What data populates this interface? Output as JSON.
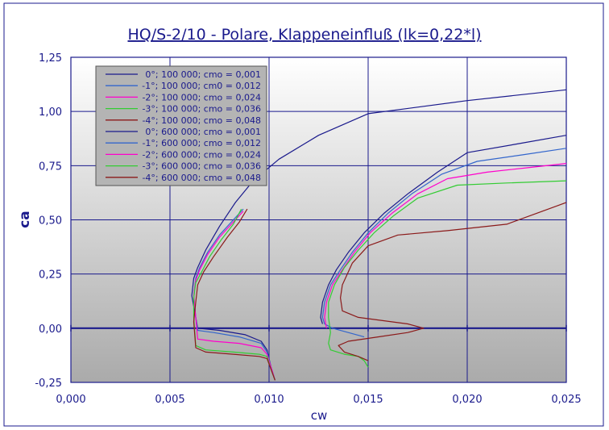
{
  "chart_data": {
    "type": "line",
    "title": "HQ/S-2/10 - Polare, Klappeneinfluß (lk=0,22*l)",
    "xlabel": "cw",
    "ylabel": "ca",
    "xlim": [
      0.0,
      0.025
    ],
    "ylim": [
      -0.25,
      1.25
    ],
    "x_ticks": [
      "0,000",
      "0,005",
      "0,010",
      "0,015",
      "0,020",
      "0,025"
    ],
    "x_tick_values": [
      0.0,
      0.005,
      0.01,
      0.015,
      0.02,
      0.025
    ],
    "y_ticks": [
      "1,25",
      "1,00",
      "0,75",
      "0,50",
      "0,25",
      "0,00",
      "-0,25"
    ],
    "y_tick_values": [
      1.25,
      1.0,
      0.75,
      0.5,
      0.25,
      0.0,
      -0.25
    ],
    "grid": true,
    "legend_position": "top-left",
    "colors": {
      "page_background": "#ffffff",
      "plot_background_top": "#ffffff",
      "plot_background_bottom": "#aaaaaa",
      "grid": "#1a1a8c",
      "legend_background": "#b4b4b4",
      "text": "#1a1a8c"
    },
    "series": [
      {
        "name": "0°; 100 000; cmo = 0,001",
        "color": "#1a1a8c",
        "x": [
          0.0103,
          0.0101,
          0.0099,
          0.0096,
          0.0088,
          0.0075,
          0.0064,
          0.0063,
          0.0061,
          0.0062,
          0.0064,
          0.0068,
          0.0075,
          0.0083,
          0.0092,
          0.0105,
          0.0125,
          0.015,
          0.02,
          0.025
        ],
        "y": [
          -0.24,
          -0.18,
          -0.1,
          -0.06,
          -0.03,
          -0.01,
          0.0,
          0.05,
          0.15,
          0.23,
          0.28,
          0.36,
          0.47,
          0.58,
          0.68,
          0.78,
          0.89,
          0.99,
          1.05,
          1.1
        ]
      },
      {
        "name": "-1°; 100 000; cm0 = 0,012",
        "color": "#3366cc",
        "x": [
          0.0103,
          0.0101,
          0.0099,
          0.0096,
          0.0085,
          0.0072,
          0.0064,
          0.0063,
          0.0062,
          0.0063,
          0.0065,
          0.0069,
          0.0075,
          0.0082,
          0.0087
        ],
        "y": [
          -0.24,
          -0.18,
          -0.11,
          -0.07,
          -0.04,
          -0.02,
          -0.01,
          0.05,
          0.15,
          0.23,
          0.28,
          0.35,
          0.43,
          0.5,
          0.55
        ]
      },
      {
        "name": "-2°; 100 000; cmo = 0,024",
        "color": "#ff00cc",
        "x": [
          0.0103,
          0.0101,
          0.0099,
          0.0096,
          0.0085,
          0.0072,
          0.0064,
          0.0063,
          0.0062,
          0.0063,
          0.0065,
          0.0069,
          0.0075,
          0.0082,
          0.0087
        ],
        "y": [
          -0.24,
          -0.18,
          -0.12,
          -0.09,
          -0.07,
          -0.06,
          -0.05,
          0.05,
          0.15,
          0.22,
          0.27,
          0.34,
          0.42,
          0.49,
          0.54
        ]
      },
      {
        "name": "-3°; 100 000; cmo = 0,036",
        "color": "#33cc33",
        "x": [
          0.0103,
          0.0101,
          0.0099,
          0.0095,
          0.0082,
          0.0068,
          0.0063,
          0.0062,
          0.0062,
          0.0063,
          0.0066,
          0.007,
          0.0076,
          0.0082,
          0.0086
        ],
        "y": [
          -0.24,
          -0.19,
          -0.13,
          -0.12,
          -0.11,
          -0.1,
          -0.08,
          0.05,
          0.14,
          0.21,
          0.26,
          0.33,
          0.41,
          0.48,
          0.55
        ]
      },
      {
        "name": "-4°; 100 000; cmo = 0,048",
        "color": "#8b1a1a",
        "x": [
          0.0103,
          0.0101,
          0.0099,
          0.0095,
          0.0082,
          0.0068,
          0.0063,
          0.0062,
          0.0063,
          0.0064,
          0.0067,
          0.0072,
          0.0079,
          0.0085,
          0.0089
        ],
        "y": [
          -0.24,
          -0.19,
          -0.14,
          -0.13,
          -0.12,
          -0.11,
          -0.09,
          0.03,
          0.12,
          0.2,
          0.26,
          0.33,
          0.42,
          0.49,
          0.55
        ]
      },
      {
        "name": "0°; 600 000; cmo = 0,001",
        "color": "#1a1a8c",
        "x": [
          0.0127,
          0.0126,
          0.0127,
          0.013,
          0.0134,
          0.014,
          0.0148,
          0.0158,
          0.017,
          0.0185,
          0.02,
          0.0225,
          0.025
        ],
        "y": [
          0.02,
          0.05,
          0.12,
          0.2,
          0.27,
          0.35,
          0.44,
          0.53,
          0.62,
          0.72,
          0.81,
          0.85,
          0.89
        ]
      },
      {
        "name": "-1°; 600 000; cmo = 0,012",
        "color": "#3366cc",
        "x": [
          0.0148,
          0.014,
          0.0132,
          0.0128,
          0.0127,
          0.0128,
          0.0131,
          0.0136,
          0.0142,
          0.015,
          0.016,
          0.0172,
          0.0187,
          0.0205,
          0.0228,
          0.025
        ],
        "y": [
          -0.04,
          -0.02,
          0.0,
          0.02,
          0.05,
          0.12,
          0.2,
          0.27,
          0.35,
          0.44,
          0.53,
          0.62,
          0.71,
          0.77,
          0.8,
          0.83
        ]
      },
      {
        "name": "-2°; 600 000; cmo = 0,024",
        "color": "#ff00cc",
        "x": [
          0.0129,
          0.0128,
          0.0129,
          0.0132,
          0.0137,
          0.0143,
          0.0151,
          0.0162,
          0.0175,
          0.019,
          0.021,
          0.023,
          0.025
        ],
        "y": [
          0.0,
          0.05,
          0.12,
          0.2,
          0.27,
          0.35,
          0.44,
          0.53,
          0.62,
          0.69,
          0.72,
          0.74,
          0.76
        ]
      },
      {
        "name": "-3°; 600 000; cmo = 0,036",
        "color": "#33cc33",
        "x": [
          0.015,
          0.0148,
          0.0145,
          0.0138,
          0.0131,
          0.013,
          0.0131,
          0.013,
          0.013,
          0.0133,
          0.0138,
          0.0145,
          0.0153,
          0.0163,
          0.0175,
          0.0195,
          0.022,
          0.025
        ],
        "y": [
          -0.18,
          -0.15,
          -0.13,
          -0.12,
          -0.1,
          -0.07,
          -0.02,
          0.05,
          0.12,
          0.2,
          0.28,
          0.36,
          0.44,
          0.52,
          0.6,
          0.66,
          0.67,
          0.68
        ]
      },
      {
        "name": "-4°; 600 000; cmo = 0,048",
        "color": "#8b1a1a",
        "x": [
          0.015,
          0.0145,
          0.0138,
          0.0135,
          0.014,
          0.0155,
          0.017,
          0.0178,
          0.017,
          0.0145,
          0.0137,
          0.0136,
          0.0137,
          0.0142,
          0.015,
          0.0165,
          0.019,
          0.022,
          0.0235,
          0.025
        ],
        "y": [
          -0.15,
          -0.13,
          -0.11,
          -0.08,
          -0.06,
          -0.04,
          -0.02,
          0.0,
          0.02,
          0.05,
          0.08,
          0.14,
          0.2,
          0.3,
          0.38,
          0.43,
          0.45,
          0.48,
          0.53,
          0.58
        ]
      }
    ]
  }
}
